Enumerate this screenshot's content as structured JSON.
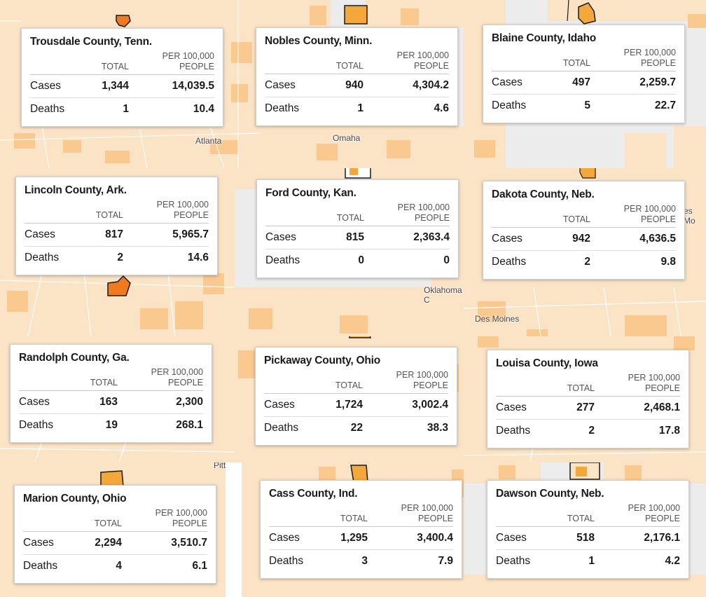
{
  "headers": {
    "total": "TOTAL",
    "per_line1": "PER 100,000",
    "per_line2": "PEOPLE"
  },
  "row_labels": {
    "cases": "Cases",
    "deaths": "Deaths"
  },
  "colors": {
    "base": "#fbe3c6",
    "mid": "#f9c98f",
    "high": "#f5a83a",
    "hot": "#f07a1e",
    "highlight": "#f08a18",
    "outline": "#1a1a1a"
  },
  "map_labels": {
    "atlanta": "Atlanta",
    "omaha": "Omaha",
    "oklahoma": "Oklahoma C",
    "des_moines": "Des Moines",
    "moines": "es Mo",
    "pitt": "Pitt"
  },
  "counties": [
    {
      "name": "Trousdale County, Tenn.",
      "cases_total": "1,344",
      "cases_per": "14,039.5",
      "deaths_total": "1",
      "deaths_per": "10.4"
    },
    {
      "name": "Nobles County, Minn.",
      "cases_total": "940",
      "cases_per": "4,304.2",
      "deaths_total": "1",
      "deaths_per": "4.6"
    },
    {
      "name": "Blaine County, Idaho",
      "cases_total": "497",
      "cases_per": "2,259.7",
      "deaths_total": "5",
      "deaths_per": "22.7"
    },
    {
      "name": "Lincoln County, Ark.",
      "cases_total": "817",
      "cases_per": "5,965.7",
      "deaths_total": "2",
      "deaths_per": "14.6"
    },
    {
      "name": "Ford County, Kan.",
      "cases_total": "815",
      "cases_per": "2,363.4",
      "deaths_total": "0",
      "deaths_per": "0"
    },
    {
      "name": "Dakota County, Neb.",
      "cases_total": "942",
      "cases_per": "4,636.5",
      "deaths_total": "2",
      "deaths_per": "9.8"
    },
    {
      "name": "Randolph County, Ga.",
      "cases_total": "163",
      "cases_per": "2,300",
      "deaths_total": "19",
      "deaths_per": "268.1"
    },
    {
      "name": "Pickaway County, Ohio",
      "cases_total": "1,724",
      "cases_per": "3,002.4",
      "deaths_total": "22",
      "deaths_per": "38.3"
    },
    {
      "name": "Louisa County, Iowa",
      "cases_total": "277",
      "cases_per": "2,468.1",
      "deaths_total": "2",
      "deaths_per": "17.8"
    },
    {
      "name": "Marion County, Ohio",
      "cases_total": "2,294",
      "cases_per": "3,510.7",
      "deaths_total": "4",
      "deaths_per": "6.1"
    },
    {
      "name": "Cass County, Ind.",
      "cases_total": "1,295",
      "cases_per": "3,400.4",
      "deaths_total": "3",
      "deaths_per": "7.9"
    },
    {
      "name": "Dawson County, Neb.",
      "cases_total": "518",
      "cases_per": "2,176.1",
      "deaths_total": "1",
      "deaths_per": "4.2"
    }
  ]
}
